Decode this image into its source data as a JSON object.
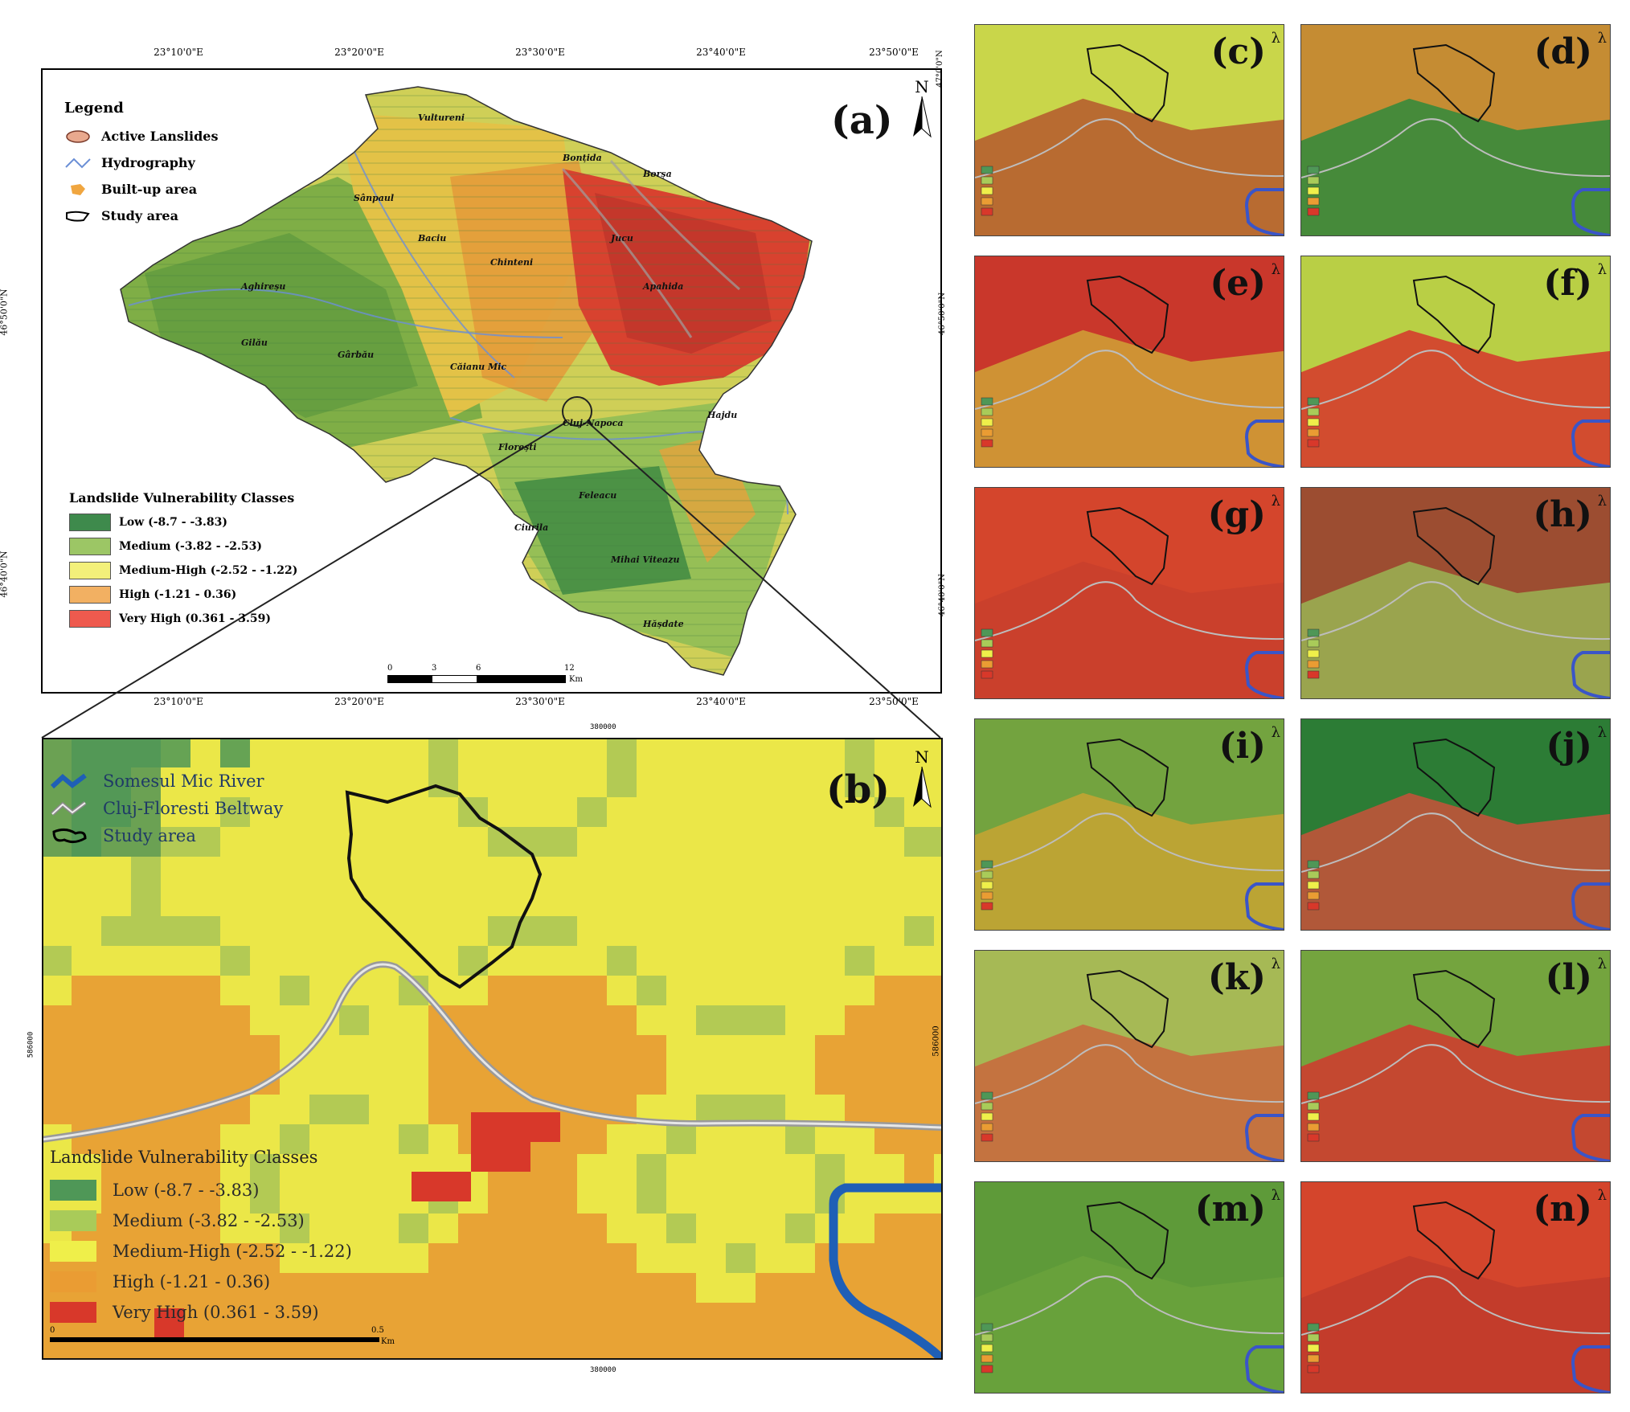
{
  "panel_a": {
    "label": "(a)",
    "north": "N",
    "legend_title": "Legend",
    "legend_items": [
      {
        "name": "active-landslides",
        "label": "Active Lanslides",
        "color": "#e9a98e"
      },
      {
        "name": "hydrography",
        "label": "Hydrography",
        "color": "#6b8fd6"
      },
      {
        "name": "built-up-area",
        "label": "Built-up area",
        "color": "#f0a640"
      },
      {
        "name": "study-area",
        "label": "Study area",
        "color": "#000000"
      }
    ],
    "classes_title": "Landslide Vulnerability Classes",
    "classes": [
      {
        "label": "Low (-8.7 - -3.83)",
        "color": "#3e8a4c"
      },
      {
        "label": "Medium (-3.82 - -2.53)",
        "color": "#9cc665"
      },
      {
        "label": "Medium-High (-2.52 - -1.22)",
        "color": "#f3f07a"
      },
      {
        "label": "High (-1.21 - 0.36)",
        "color": "#f2b062"
      },
      {
        "label": "Very High (0.361 - 3.59)",
        "color": "#ee5a4e"
      }
    ],
    "top_ticks": [
      "23°10'0\"E",
      "23°20'0\"E",
      "23°30'0\"E",
      "23°40'0\"E",
      "23°50'0\"E"
    ],
    "bottom_ticks": [
      "23°10'0\"E",
      "23°20'0\"E",
      "23°30'0\"E",
      "23°40'0\"E",
      "23°50'0\"E"
    ],
    "left_ticks": [
      "46°50'0\"N",
      "46°40'0\"N"
    ],
    "scale_ticks": [
      "0",
      "3",
      "6",
      "12"
    ],
    "scale_unit": "Km",
    "place_labels": [
      "Baciu",
      "Sânpaul",
      "Gârbău",
      "Vultureni",
      "Chinteni",
      "Jucu",
      "Apahida",
      "Florești",
      "Cluj-Napoca",
      "Feleacu",
      "Ciurila",
      "Bonțida",
      "Borșa",
      "Aghireșu",
      "Gilău",
      "Mihai Viteazu",
      "Hășdate",
      "Căianu Mic",
      "Hajdu"
    ]
  },
  "panel_b": {
    "label": "(b)",
    "north": "N",
    "legend_items": [
      {
        "name": "somesul-mic-river",
        "label": "Somesul Mic River",
        "color": "#1f5fb6"
      },
      {
        "name": "beltway",
        "label": "Cluj-Floresti Beltway",
        "color": "#8a8a8a"
      },
      {
        "name": "study-area",
        "label": "Study area",
        "color": "#000000"
      }
    ],
    "classes_title": "Landslide Vulnerability Classes",
    "classes": [
      {
        "label": "Low (-8.7 - -3.83)",
        "color": "#4f9757"
      },
      {
        "label": "Medium (-3.82 - -2.53)",
        "color": "#a9cb59"
      },
      {
        "label": "Medium-High (-2.52 - -1.22)",
        "color": "#efef4a"
      },
      {
        "label": "High (-1.21 - 0.36)",
        "color": "#ea9c33"
      },
      {
        "label": "Very High (0.361 - 3.59)",
        "color": "#d8382a"
      }
    ],
    "top_tick": "380000",
    "bottom_tick": "380000",
    "left_tick": "586000",
    "scale_ticks": [
      "0",
      "0.5"
    ],
    "scale_unit": "Km"
  },
  "small_panels": [
    {
      "label": "(c)",
      "tint": "#c9d64a",
      "lower": "#b5582d"
    },
    {
      "label": "(d)",
      "tint": "#c58c33",
      "lower": "#2f8a3c"
    },
    {
      "label": "(e)",
      "tint": "#c9372b",
      "lower": "#d0a236"
    },
    {
      "label": "(f)",
      "tint": "#b9cf45",
      "lower": "#d6352b"
    },
    {
      "label": "(g)",
      "tint": "#d4452c",
      "lower": "#c8402d"
    },
    {
      "label": "(h)",
      "tint": "#9c4d31",
      "lower": "#9ab454"
    },
    {
      "label": "(i)",
      "tint": "#73a33f",
      "lower": "#c8a433"
    },
    {
      "label": "(j)",
      "tint": "#2c7c35",
      "lower": "#c9523a"
    },
    {
      "label": "(k)",
      "tint": "#a6b955",
      "lower": "#c9663d"
    },
    {
      "label": "(l)",
      "tint": "#74a43e",
      "lower": "#d2382e"
    },
    {
      "label": "(m)",
      "tint": "#5e9a39",
      "lower": "#6aa23c"
    },
    {
      "label": "(n)",
      "tint": "#d4452c",
      "lower": "#bf3b2b"
    }
  ],
  "small_left_ticks": [
    "47°0'0\"N",
    "46°50'0\"N",
    "46°40'0\"N",
    "586000"
  ]
}
